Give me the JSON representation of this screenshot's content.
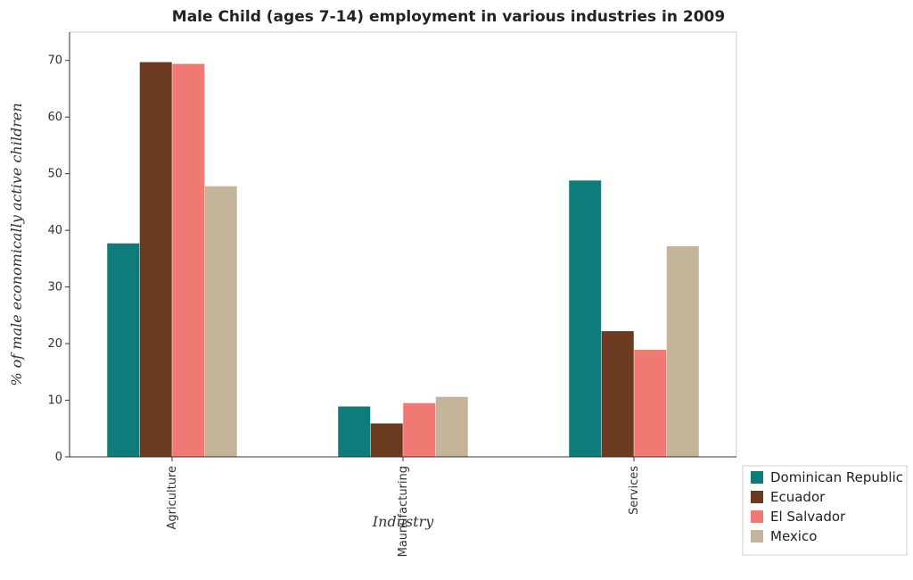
{
  "chart_data": {
    "type": "bar",
    "title": "Male Child (ages 7-14) employment in various industries in 2009",
    "xlabel": "Industry",
    "ylabel": "% of male economically active children",
    "ylim": [
      0,
      75
    ],
    "yticks": [
      0,
      10,
      20,
      30,
      40,
      50,
      60,
      70
    ],
    "categories": [
      "Agriculture",
      "Maunufacturing",
      "Services"
    ],
    "series": [
      {
        "name": "Dominican Republic",
        "color": "#0e7c7b",
        "values": [
          37.7,
          8.9,
          48.8
        ]
      },
      {
        "name": "Ecuador",
        "color": "#6b3a1f",
        "values": [
          69.7,
          5.9,
          22.2
        ]
      },
      {
        "name": "El Salvador",
        "color": "#f07a73",
        "values": [
          69.4,
          9.5,
          18.9
        ]
      },
      {
        "name": "Mexico",
        "color": "#c4b49a",
        "values": [
          47.8,
          10.6,
          37.2
        ]
      }
    ],
    "legend_position": "bottom-right",
    "grid": false
  }
}
